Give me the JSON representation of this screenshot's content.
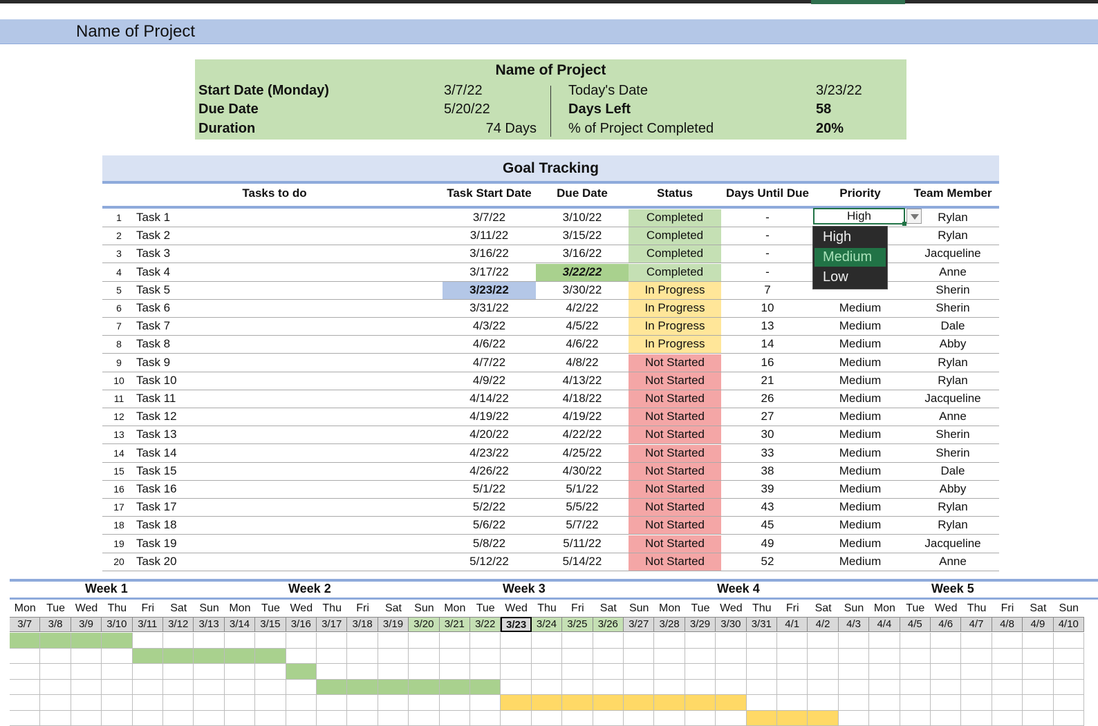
{
  "sheet": {
    "title": "Name of Project"
  },
  "summary": {
    "title": "Name of Project",
    "start_label": "Start Date (Monday)",
    "start_value": "3/7/22",
    "due_label": "Due Date",
    "due_value": "5/20/22",
    "duration_label": "Duration",
    "duration_value": "74 Days",
    "today_label": "Today's Date",
    "today_value": "3/23/22",
    "days_left_label": "Days Left",
    "days_left_value": "58",
    "pct_label": "% of Project Completed",
    "pct_value": "20%"
  },
  "goal": {
    "title": "Goal Tracking",
    "headers": {
      "tasks": "Tasks to do",
      "start": "Task Start Date",
      "due": "Due Date",
      "status": "Status",
      "days": "Days Until Due",
      "priority": "Priority",
      "team": "Team Member"
    },
    "rows": [
      {
        "num": "1",
        "task": "Task 1",
        "start": "3/7/22",
        "due": "3/10/22",
        "status": "Completed",
        "days": "-",
        "priority": "High",
        "team": "Rylan"
      },
      {
        "num": "2",
        "task": "Task 2",
        "start": "3/11/22",
        "due": "3/15/22",
        "status": "Completed",
        "days": "-",
        "priority": "",
        "team": "Rylan"
      },
      {
        "num": "3",
        "task": "Task 3",
        "start": "3/16/22",
        "due": "3/16/22",
        "status": "Completed",
        "days": "-",
        "priority": "",
        "team": "Jacqueline"
      },
      {
        "num": "4",
        "task": "Task 4",
        "start": "3/17/22",
        "due": "3/22/22",
        "status": "Completed",
        "days": "-",
        "priority": "",
        "team": "Anne"
      },
      {
        "num": "5",
        "task": "Task 5",
        "start": "3/23/22",
        "due": "3/30/22",
        "status": "In Progress",
        "days": "7",
        "priority": "",
        "team": "Sherin"
      },
      {
        "num": "6",
        "task": "Task 6",
        "start": "3/31/22",
        "due": "4/2/22",
        "status": "In Progress",
        "days": "10",
        "priority": "Medium",
        "team": "Sherin"
      },
      {
        "num": "7",
        "task": "Task 7",
        "start": "4/3/22",
        "due": "4/5/22",
        "status": "In Progress",
        "days": "13",
        "priority": "Medium",
        "team": "Dale"
      },
      {
        "num": "8",
        "task": "Task 8",
        "start": "4/6/22",
        "due": "4/6/22",
        "status": "In Progress",
        "days": "14",
        "priority": "Medium",
        "team": "Abby"
      },
      {
        "num": "9",
        "task": "Task 9",
        "start": "4/7/22",
        "due": "4/8/22",
        "status": "Not Started",
        "days": "16",
        "priority": "Medium",
        "team": "Rylan"
      },
      {
        "num": "10",
        "task": "Task 10",
        "start": "4/9/22",
        "due": "4/13/22",
        "status": "Not Started",
        "days": "21",
        "priority": "Medium",
        "team": "Rylan"
      },
      {
        "num": "11",
        "task": "Task 11",
        "start": "4/14/22",
        "due": "4/18/22",
        "status": "Not Started",
        "days": "26",
        "priority": "Medium",
        "team": "Jacqueline"
      },
      {
        "num": "12",
        "task": "Task 12",
        "start": "4/19/22",
        "due": "4/19/22",
        "status": "Not Started",
        "days": "27",
        "priority": "Medium",
        "team": "Anne"
      },
      {
        "num": "13",
        "task": "Task 13",
        "start": "4/20/22",
        "due": "4/22/22",
        "status": "Not Started",
        "days": "30",
        "priority": "Medium",
        "team": "Sherin"
      },
      {
        "num": "14",
        "task": "Task 14",
        "start": "4/23/22",
        "due": "4/25/22",
        "status": "Not Started",
        "days": "33",
        "priority": "Medium",
        "team": "Sherin"
      },
      {
        "num": "15",
        "task": "Task 15",
        "start": "4/26/22",
        "due": "4/30/22",
        "status": "Not Started",
        "days": "38",
        "priority": "Medium",
        "team": "Dale"
      },
      {
        "num": "16",
        "task": "Task 16",
        "start": "5/1/22",
        "due": "5/1/22",
        "status": "Not Started",
        "days": "39",
        "priority": "Medium",
        "team": "Abby"
      },
      {
        "num": "17",
        "task": "Task 17",
        "start": "5/2/22",
        "due": "5/5/22",
        "status": "Not Started",
        "days": "43",
        "priority": "Medium",
        "team": "Rylan"
      },
      {
        "num": "18",
        "task": "Task 18",
        "start": "5/6/22",
        "due": "5/7/22",
        "status": "Not Started",
        "days": "45",
        "priority": "Medium",
        "team": "Rylan"
      },
      {
        "num": "19",
        "task": "Task 19",
        "start": "5/8/22",
        "due": "5/11/22",
        "status": "Not Started",
        "days": "49",
        "priority": "Medium",
        "team": "Jacqueline"
      },
      {
        "num": "20",
        "task": "Task 20",
        "start": "5/12/22",
        "due": "5/14/22",
        "status": "Not Started",
        "days": "52",
        "priority": "Medium",
        "team": "Anne"
      }
    ]
  },
  "priority_dropdown": {
    "current": "High",
    "options": [
      "High",
      "Medium",
      "Low"
    ],
    "highlighted": "Medium"
  },
  "gantt": {
    "weeks": [
      "Week 1",
      "Week 2",
      "Week 3",
      "Week 4",
      "Week 5"
    ],
    "day_names": [
      "Mon",
      "Tue",
      "Wed",
      "Thu",
      "Fri",
      "Sat",
      "Sun",
      "Mon",
      "Tue",
      "Wed",
      "Thu",
      "Fri",
      "Sat",
      "Sun",
      "Mon",
      "Tue",
      "Wed",
      "Thu",
      "Fri",
      "Sat",
      "Sun",
      "Mon",
      "Tue",
      "Wed",
      "Thu",
      "Fri",
      "Sat",
      "Sun",
      "Mon",
      "Tue",
      "Wed",
      "Thu",
      "Fri",
      "Sat",
      "Sun"
    ],
    "dates": [
      "3/7",
      "3/8",
      "3/9",
      "3/10",
      "3/11",
      "3/12",
      "3/13",
      "3/14",
      "3/15",
      "3/16",
      "3/17",
      "3/18",
      "3/19",
      "3/20",
      "3/21",
      "3/22",
      "3/23",
      "3/24",
      "3/25",
      "3/26",
      "3/27",
      "3/28",
      "3/29",
      "3/30",
      "3/31",
      "4/1",
      "4/2",
      "4/3",
      "4/4",
      "4/5",
      "4/6",
      "4/7",
      "4/8",
      "4/9",
      "4/10"
    ],
    "today": "3/23",
    "bars": [
      {
        "task": "Task 1",
        "from": "3/7",
        "to": "3/10",
        "color": "#a9d18e"
      },
      {
        "task": "Task 2",
        "from": "3/11",
        "to": "3/15",
        "color": "#a9d18e"
      },
      {
        "task": "Task 3",
        "from": "3/16",
        "to": "3/16",
        "color": "#a9d18e"
      },
      {
        "task": "Task 4",
        "from": "3/17",
        "to": "3/22",
        "color": "#a9d18e"
      },
      {
        "task": "Task 5",
        "from": "3/23",
        "to": "3/30",
        "color": "#ffd966"
      },
      {
        "task": "Task 6",
        "from": "3/31",
        "to": "4/2",
        "color": "#ffd966"
      }
    ]
  },
  "colors": {
    "completed": "#c5e0b4",
    "in_progress": "#ffe699",
    "not_started": "#f4a6a6",
    "header_band": "#b4c7e7",
    "accent": "#217346"
  }
}
